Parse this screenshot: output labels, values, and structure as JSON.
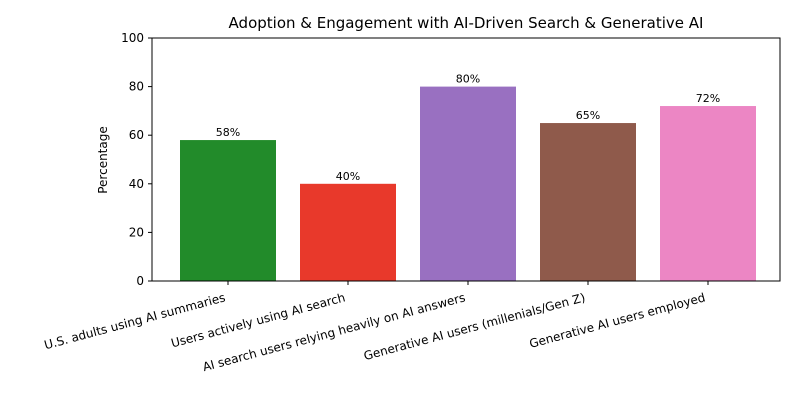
{
  "chart_data": {
    "type": "bar",
    "title": "Adoption & Engagement with AI-Driven Search & Generative AI",
    "xlabel": "",
    "ylabel": "Percentage",
    "ylim": [
      0,
      100
    ],
    "yticks": [
      0,
      20,
      40,
      60,
      80,
      100
    ],
    "categories": [
      "U.S. adults using AI summaries",
      "Users actively using AI search",
      "AI search users relying heavily on AI answers",
      "Generative AI users (millenials/Gen Z)",
      "Generative AI users employed"
    ],
    "values": [
      58,
      40,
      80,
      65,
      72
    ],
    "data_labels": [
      "58%",
      "40%",
      "80%",
      "65%",
      "72%"
    ],
    "colors": [
      "#228b2a",
      "#e8392b",
      "#9970c1",
      "#8f5a4b",
      "#ec86c4"
    ],
    "grid": false,
    "legend": "none"
  }
}
